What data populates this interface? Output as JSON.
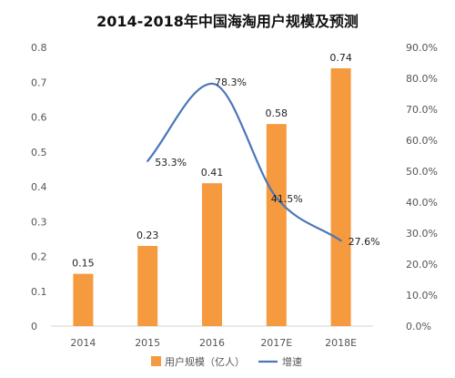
{
  "chart_data": {
    "type": "bar",
    "title": "2014-2018年中国海淘用户规模及预测",
    "categories": [
      "2014",
      "2015",
      "2016",
      "2017E",
      "2018E"
    ],
    "series": [
      {
        "name": "用户规模（亿人）",
        "type": "bar",
        "axis": "left",
        "color": "#F59A3E",
        "values": [
          0.15,
          0.23,
          0.41,
          0.58,
          0.74
        ],
        "labels": [
          "0.15",
          "0.23",
          "0.41",
          "0.58",
          "0.74"
        ]
      },
      {
        "name": "增速",
        "type": "line",
        "axis": "right",
        "color": "#4A76B8",
        "values": [
          null,
          53.3,
          78.3,
          41.5,
          27.6
        ],
        "labels": [
          "",
          "53.3%",
          "78.3%",
          "41.5%",
          "27.6%"
        ]
      }
    ],
    "y_left": {
      "min": 0,
      "max": 0.8,
      "ticks": [
        "0",
        "0.1",
        "0.2",
        "0.3",
        "0.4",
        "0.5",
        "0.6",
        "0.7",
        "0.8"
      ]
    },
    "y_right": {
      "min": 0,
      "max": 90,
      "ticks": [
        "0.0%",
        "10.0%",
        "20.0%",
        "30.0%",
        "40.0%",
        "50.0%",
        "60.0%",
        "70.0%",
        "80.0%",
        "90.0%"
      ]
    },
    "grid": false,
    "legend_position": "bottom"
  }
}
